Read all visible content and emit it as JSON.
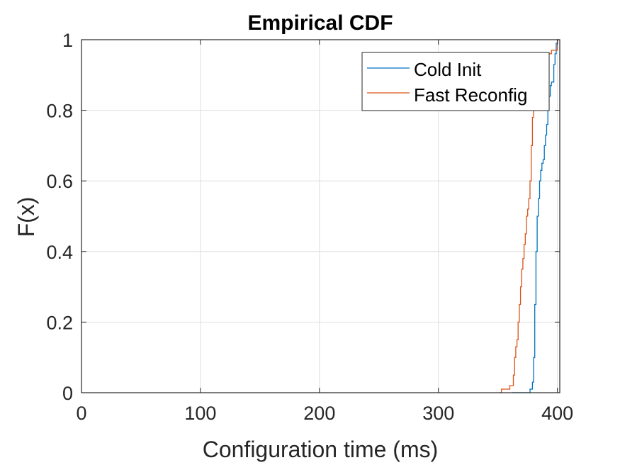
{
  "chart_data": {
    "type": "line",
    "title": "Empirical CDF",
    "xlabel": "Configuration time (ms)",
    "ylabel": "F(x)",
    "xlim": [
      0,
      402
    ],
    "ylim": [
      0,
      1
    ],
    "x_ticks": [
      0,
      100,
      200,
      300,
      400
    ],
    "y_ticks": [
      0,
      0.2,
      0.4,
      0.6,
      0.8,
      1
    ],
    "x_tick_labels": [
      "0",
      "100",
      "200",
      "300",
      "400"
    ],
    "y_tick_labels": [
      "0",
      "0.2",
      "0.4",
      "0.6",
      "0.8",
      "1"
    ],
    "grid": true,
    "legend_position": "top-right",
    "series": [
      {
        "name": "Cold Init",
        "color": "#0072BD",
        "step": true,
        "x": [
          362,
          377,
          379,
          380,
          381,
          382,
          383,
          384,
          385,
          386,
          387,
          388,
          389,
          390,
          391,
          392,
          393,
          394,
          395,
          396,
          397,
          398,
          399,
          400,
          401
        ],
        "y": [
          0,
          0.01,
          0.03,
          0.1,
          0.25,
          0.4,
          0.5,
          0.55,
          0.6,
          0.63,
          0.65,
          0.66,
          0.7,
          0.73,
          0.76,
          0.8,
          0.84,
          0.87,
          0.88,
          0.88,
          0.93,
          0.96,
          0.99,
          1.0,
          1.0
        ]
      },
      {
        "name": "Fast Reconfig",
        "color": "#D95319",
        "step": true,
        "x": [
          351,
          353,
          360,
          363,
          364,
          365,
          366,
          367,
          368,
          369,
          370,
          371,
          372,
          373,
          374,
          375,
          376,
          377,
          378,
          379,
          380,
          381,
          382,
          383,
          384,
          385,
          386,
          387,
          388,
          389,
          390,
          391,
          392,
          393,
          394,
          395,
          396,
          398,
          400,
          402
        ],
        "y": [
          0,
          0.01,
          0.02,
          0.05,
          0.1,
          0.13,
          0.15,
          0.2,
          0.25,
          0.3,
          0.35,
          0.38,
          0.42,
          0.45,
          0.5,
          0.52,
          0.55,
          0.6,
          0.7,
          0.78,
          0.83,
          0.85,
          0.86,
          0.9,
          0.92,
          0.93,
          0.94,
          0.95,
          0.96,
          0.96,
          0.96,
          0.96,
          0.96,
          0.96,
          0.96,
          0.97,
          0.97,
          0.97,
          1.0,
          1.0
        ]
      }
    ]
  }
}
